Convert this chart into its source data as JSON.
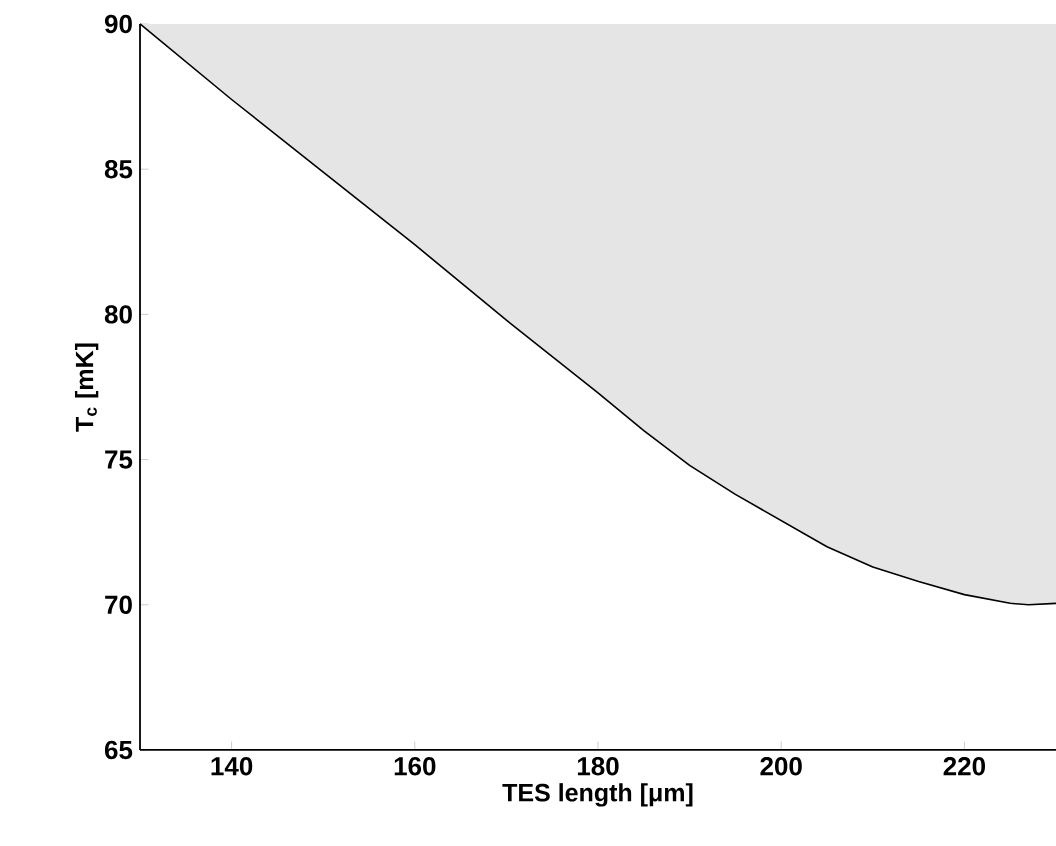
{
  "chart_data": {
    "type": "line",
    "xlabel": "TES length [μm]",
    "ylabel": "T$_{c}$ [mK]",
    "xlim": [
      130,
      230
    ],
    "ylim": [
      65,
      90
    ],
    "xticks": [
      140,
      160,
      180,
      200,
      220
    ],
    "yticks": [
      65,
      70,
      75,
      80,
      85,
      90
    ],
    "series": [
      {
        "color": "#000000",
        "x": [
          130,
          140,
          150,
          160,
          170,
          180,
          185,
          190,
          195,
          200,
          205,
          210,
          215,
          220,
          225,
          227,
          230
        ],
        "values": [
          90,
          87.4,
          84.9,
          82.4,
          79.8,
          77.3,
          76.0,
          74.8,
          73.8,
          72.9,
          72.0,
          71.3,
          70.8,
          70.35,
          70.05,
          70.0,
          70.05
        ],
        "upper": [
          90,
          90,
          90,
          90,
          90,
          90,
          90,
          90,
          90,
          90,
          90,
          90,
          90,
          90,
          90,
          90,
          90
        ],
        "lower": [
          90,
          87.4,
          84.9,
          82.4,
          79.8,
          77.3,
          76.0,
          74.8,
          73.8,
          72.9,
          72.0,
          71.3,
          70.8,
          70.35,
          70.05,
          70.0,
          70.05
        ]
      }
    ]
  }
}
